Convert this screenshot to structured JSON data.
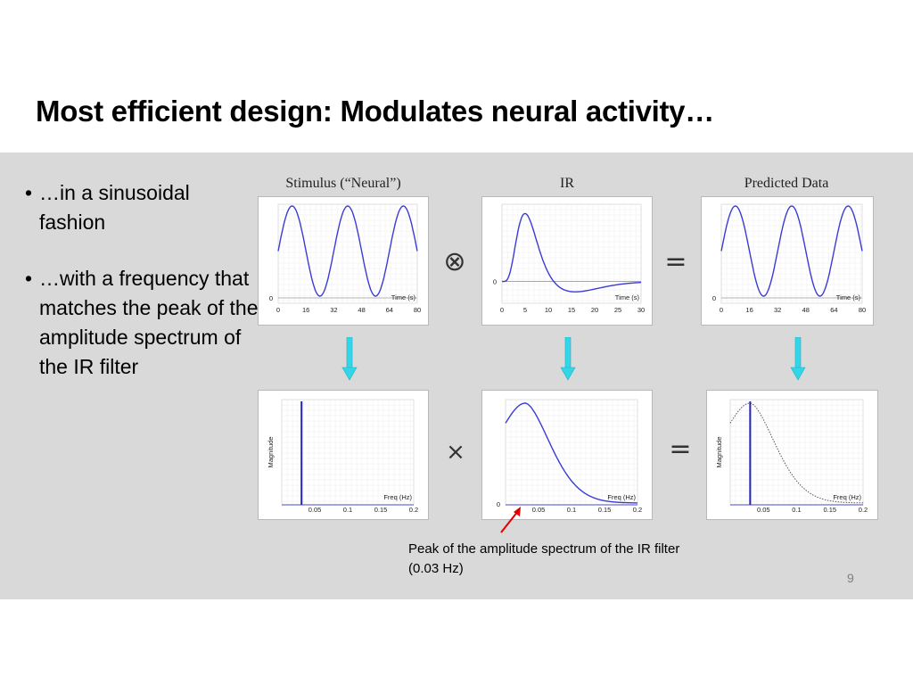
{
  "slide": {
    "title": "Most efficient design: Modulates neural activity…",
    "bullets": [
      {
        "text": "…in a sinusoidal fashion"
      },
      {
        "text": "…with a frequency that matches the peak of the amplitude spectrum of the IR filter"
      }
    ],
    "column_titles": [
      "Stimulus (“Neural”)",
      "IR",
      "Predicted Data"
    ],
    "operators": {
      "convolve": "⊗",
      "equals": "=",
      "multiply": "×"
    },
    "caption": "Peak of the amplitude spectrum of the IR filter (0.03 Hz)",
    "page_number": "9",
    "colors": {
      "curve": "#3b3bd6",
      "arrow_down": "#33d6e8",
      "annotation_arrow": "#e00000",
      "band": "#d9d9d9"
    }
  },
  "chart_data": [
    {
      "type": "line",
      "panel": "stimulus-time",
      "xlabel": "Time (s)",
      "xticks": [
        "0",
        "16",
        "32",
        "48",
        "64",
        "80"
      ],
      "ytick": "0",
      "xlim": [
        0,
        80
      ],
      "series": [
        {
          "shape": "sinusoid",
          "period": 32
        }
      ]
    },
    {
      "type": "line",
      "panel": "ir-time",
      "xlabel": "Time (s)",
      "xticks": [
        "0",
        "5",
        "10",
        "15",
        "20",
        "25",
        "30"
      ],
      "ytick": "0",
      "xlim": [
        0,
        30
      ],
      "series": [
        {
          "shape": "hemodynamic response",
          "peak_x": 5
        }
      ]
    },
    {
      "type": "line",
      "panel": "predicted-time",
      "xlabel": "Time (s)",
      "xticks": [
        "0",
        "16",
        "32",
        "48",
        "64",
        "80"
      ],
      "ytick": "0",
      "xlim": [
        0,
        80
      ],
      "series": [
        {
          "shape": "sinusoid",
          "period": 32
        }
      ]
    },
    {
      "type": "line",
      "panel": "stimulus-freq",
      "xlabel": "Freq (Hz)",
      "ylabel": "Magnitude",
      "xticks": [
        "0.05",
        "0.1",
        "0.15",
        "0.2"
      ],
      "xlim": [
        0,
        0.2
      ],
      "series": [
        {
          "shape": "spike",
          "x": 0.03
        }
      ]
    },
    {
      "type": "line",
      "panel": "ir-freq",
      "xlabel": "Freq (Hz)",
      "xticks": [
        "0.05",
        "0.1",
        "0.15",
        "0.2"
      ],
      "ytick": "0",
      "xlim": [
        0,
        0.2
      ],
      "series": [
        {
          "shape": "amplitude spectrum",
          "peak_x": 0.03
        }
      ]
    },
    {
      "type": "line",
      "panel": "predicted-freq",
      "xlabel": "Freq (Hz)",
      "ylabel": "Magnitude",
      "xticks": [
        "0.05",
        "0.1",
        "0.15",
        "0.2"
      ],
      "xlim": [
        0,
        0.2
      ],
      "series": [
        {
          "shape": "spike",
          "x": 0.03
        },
        {
          "shape": "amplitude spectrum (dotted)",
          "peak_x": 0.03
        }
      ]
    }
  ]
}
